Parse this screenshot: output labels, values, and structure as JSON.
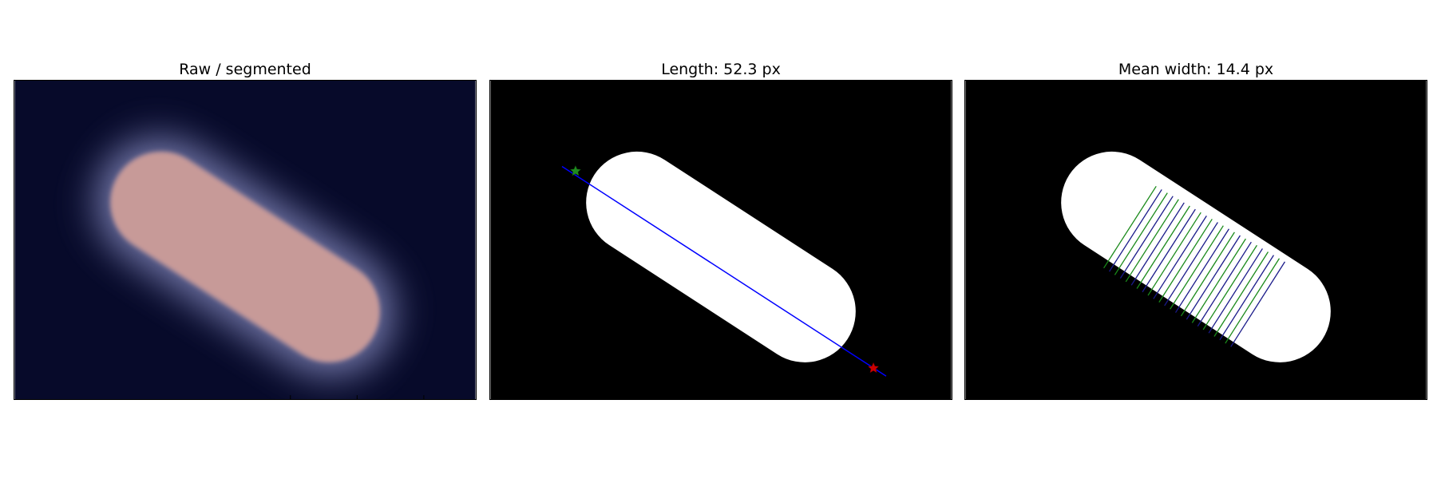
{
  "panels": [
    {
      "title": "Raw / segmented"
    },
    {
      "title": "Length: 52.3 px"
    },
    {
      "title": "Mean width: 14.4 px"
    }
  ],
  "colors": {
    "background_dark": "#070a2a",
    "halo": "#8a8fc4",
    "cell_overlay": "#c79a98",
    "mask": "#ffffff",
    "mask_bg": "#000000",
    "length_line": "#0000ff",
    "start_marker": "#1f8a1f",
    "end_marker": "#cc0000",
    "width_line_a": "#1a8a1a",
    "width_line_b": "#1a1a8a"
  },
  "icons": {
    "start_marker": "star-icon",
    "end_marker": "star-icon"
  }
}
